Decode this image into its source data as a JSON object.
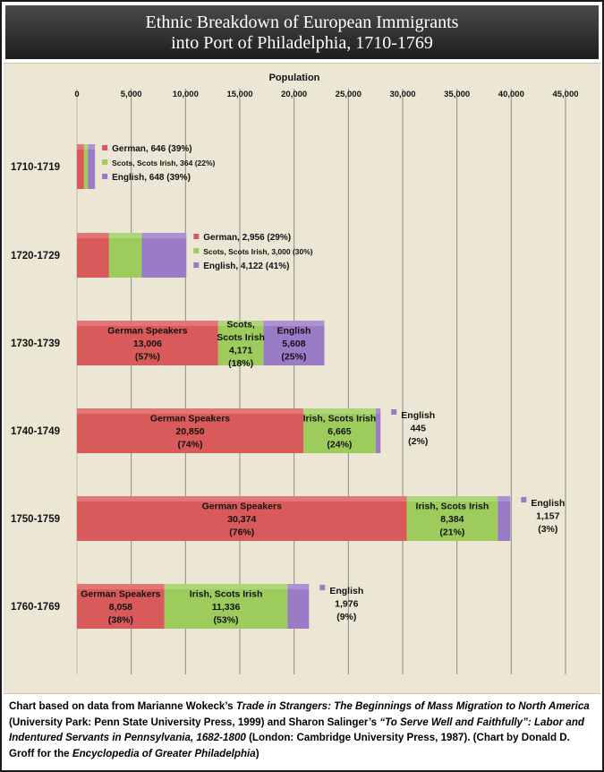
{
  "title": {
    "line1": "Ethnic Breakdown of European Immigrants",
    "line2": "into Port of Philadelphia, 1710-1769"
  },
  "colors": {
    "german": "#d95a5a",
    "scots_irish": "#9dcc5d",
    "english": "#9a7bc6",
    "panel": "#ece7d5",
    "title_bar": "#2a2a2a"
  },
  "chart_data": {
    "type": "bar",
    "orientation": "horizontal",
    "stacked": true,
    "xlabel": "Population",
    "xlim": [
      0,
      45000
    ],
    "x_ticks": [
      "0",
      "5,000",
      "10,000",
      "15,000",
      "20,000",
      "25,000",
      "30,000",
      "35,000",
      "40,000",
      "45,000"
    ],
    "x_tick_values": [
      0,
      5000,
      10000,
      15000,
      20000,
      25000,
      30000,
      35000,
      40000,
      45000
    ],
    "grid": true,
    "categories": [
      "1710-1719",
      "1720-1729",
      "1730-1739",
      "1740-1749",
      "1750-1759",
      "1760-1769"
    ],
    "series": [
      {
        "key": "german",
        "values": [
          646,
          2956,
          13006,
          20850,
          30374,
          8058
        ]
      },
      {
        "key": "scots_irish",
        "values": [
          364,
          3000,
          4171,
          6665,
          8384,
          11336
        ]
      },
      {
        "key": "english",
        "values": [
          648,
          4122,
          5608,
          445,
          1157,
          1976
        ]
      }
    ],
    "legend_labels": [
      [
        "German, 646 (39%)",
        "Scots, Scots Irish, 364 (22%)",
        "English, 648 (39%)"
      ],
      [
        "German, 2,956 (29%)",
        "Scots, Scots Irish, 3,000  (30%)",
        "English, 4,122 (41%)"
      ]
    ],
    "inner_labels": [
      null,
      null,
      [
        [
          "German Speakers",
          "13,006",
          "(57%)"
        ],
        [
          "Scots,",
          "Scots Irish",
          "4,171",
          "(18%)"
        ],
        [
          "English",
          "5,608",
          "(25%)"
        ]
      ],
      [
        [
          "German Speakers",
          "20,850",
          "(74%)"
        ],
        [
          "Irish, Scots Irish",
          "6,665",
          "(24%)"
        ],
        [
          "English",
          "445",
          "(2%)"
        ]
      ],
      [
        [
          "German Speakers",
          "30,374",
          "(76%)"
        ],
        [
          "Irish, Scots Irish",
          "8,384",
          "(21%)"
        ],
        [
          "English",
          "1,157",
          "(3%)"
        ]
      ],
      [
        [
          "German Speakers",
          "8,058",
          "(38%)"
        ],
        [
          "Irish, Scots Irish",
          "11,336",
          "(53%)"
        ],
        [
          "English",
          "1,976",
          "(9%)"
        ]
      ]
    ]
  },
  "footnote": {
    "p1": "Chart based on data from Marianne Wokeck’s ",
    "i1": "Trade in Strangers: The Beginnings of Mass Migration to North America",
    "p2": " (University Park: Penn State University Press, 1999) and Sharon Salinger’s ",
    "i2": "“To Serve Well and Faithfully”: Labor and Indentured Servants in Pennsylvania, 1682-1800",
    "p3": " (London: Cambridge University Press, 1987).  (Chart by Donald D. Groff for the ",
    "i3": "Encyclopedia of Greater Philadelphia",
    "p4": ")"
  }
}
